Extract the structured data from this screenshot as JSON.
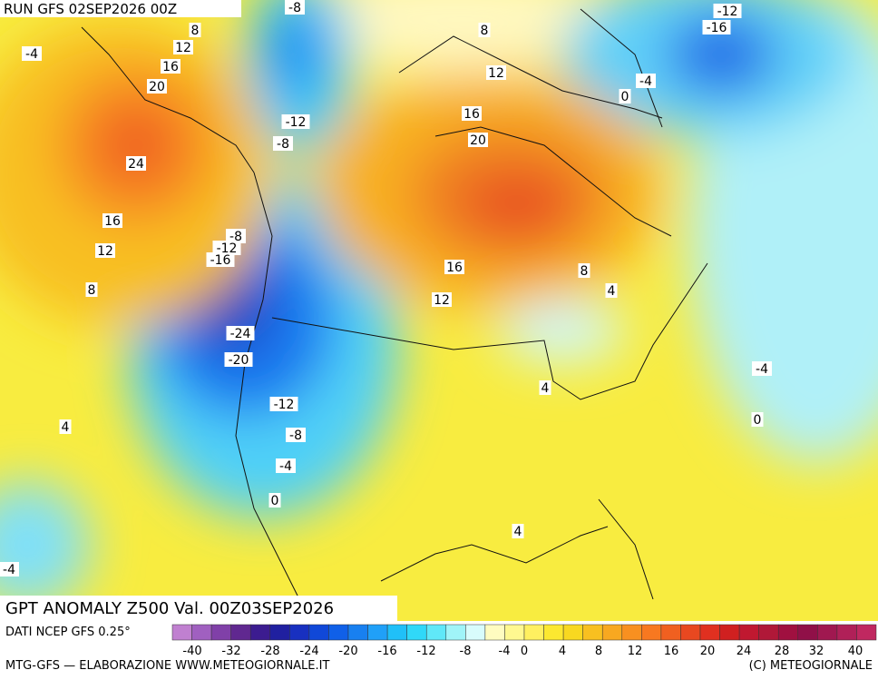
{
  "header": {
    "run": "RUN GFS 02SEP2026 00Z"
  },
  "map": {
    "contour_labels": [
      "-8",
      "8",
      "12",
      "16",
      "20",
      "24",
      "16",
      "12",
      "8",
      "-4",
      "-12",
      "-8",
      "-8",
      "-12",
      "-16",
      "-24",
      "-20",
      "-12",
      "-8",
      "-4",
      "0",
      "4",
      "-4",
      "8",
      "12",
      "16",
      "20",
      "16",
      "12",
      "8",
      "4",
      "4",
      "4",
      "0",
      "-4",
      "-12",
      "-16",
      "-4",
      "0"
    ]
  },
  "footer": {
    "title": "GPT ANOMALY Z500 Val. 00Z03SEP2026",
    "source": "DATI NCEP GFS 0.25°",
    "credit": "MTG-GFS — ELABORAZIONE WWW.METEOGIORNALE.IT",
    "copyright": "(C) METEOGIORNALE"
  },
  "colorbar": {
    "labels": [
      "-40",
      "-32",
      "-28",
      "-24",
      "-20",
      "-16",
      "-12",
      "-8",
      "-4",
      "0",
      "4",
      "8",
      "12",
      "16",
      "20",
      "24",
      "28",
      "32",
      "40"
    ],
    "colors": [
      "#c080d0",
      "#a060c0",
      "#8040a8",
      "#602890",
      "#3c1c90",
      "#2020a0",
      "#1830c0",
      "#1048d8",
      "#1060e8",
      "#1880f0",
      "#20a0f8",
      "#20c0f8",
      "#30d8f8",
      "#60e8f8",
      "#a0f4f8",
      "#d8fcfc",
      "#fffcc0",
      "#fff890",
      "#fff060",
      "#fce830",
      "#f8d820",
      "#f8c020",
      "#f8a820",
      "#f89020",
      "#f87820",
      "#f06020",
      "#e84820",
      "#e03020",
      "#d02020",
      "#c01830",
      "#b01838",
      "#a01040",
      "#901048",
      "#a01850",
      "#b02058",
      "#c02860"
    ]
  }
}
